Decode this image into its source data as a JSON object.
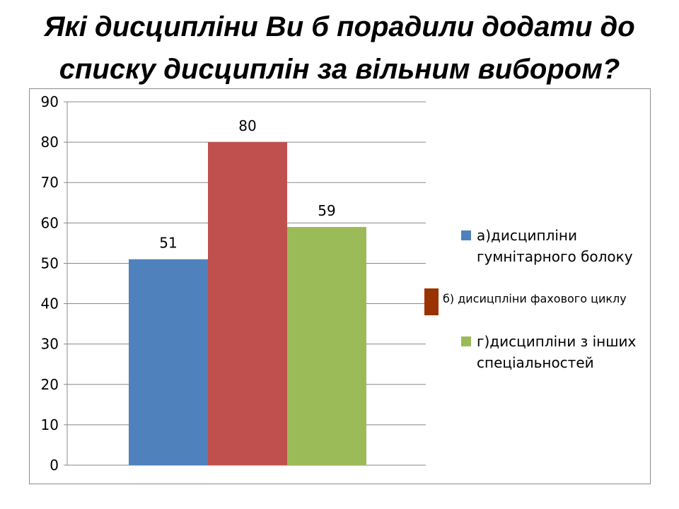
{
  "title": "Які дисципліни Ви б порадили додати до списку дисциплін за вільним вибором?",
  "colors": {
    "series_a": "#4f81bd",
    "series_b": "#c0504d",
    "series_c": "#9bbb59",
    "legend_b": "#993300"
  },
  "legend": [
    {
      "label": "а)дисципліни гумнітарного болоку",
      "color": "#4f81bd"
    },
    {
      "label": "б) дисицпліни фахового циклу",
      "color": "#993300"
    },
    {
      "label": "г)дисципліни з інших спеціальностей",
      "color": "#9bbb59"
    }
  ],
  "chart_data": {
    "type": "bar",
    "title": "Які дисципліни Ви б порадили додати до списку дисциплін за вільним вибором?",
    "categories": [
      ""
    ],
    "series": [
      {
        "name": "а)дисципліни гумнітарного болоку",
        "values": [
          51
        ],
        "color": "#4f81bd"
      },
      {
        "name": "б) дисицпліни фахового циклу",
        "values": [
          80
        ],
        "color": "#c0504d"
      },
      {
        "name": "г)дисципліни з інших спеціальностей",
        "values": [
          59
        ],
        "color": "#9bbb59"
      }
    ],
    "ylim": [
      0,
      90
    ],
    "yticks": [
      0,
      10,
      20,
      30,
      40,
      50,
      60,
      70,
      80,
      90
    ],
    "data_labels": [
      "51",
      "80",
      "59"
    ],
    "grid": true,
    "legend_position": "right"
  }
}
